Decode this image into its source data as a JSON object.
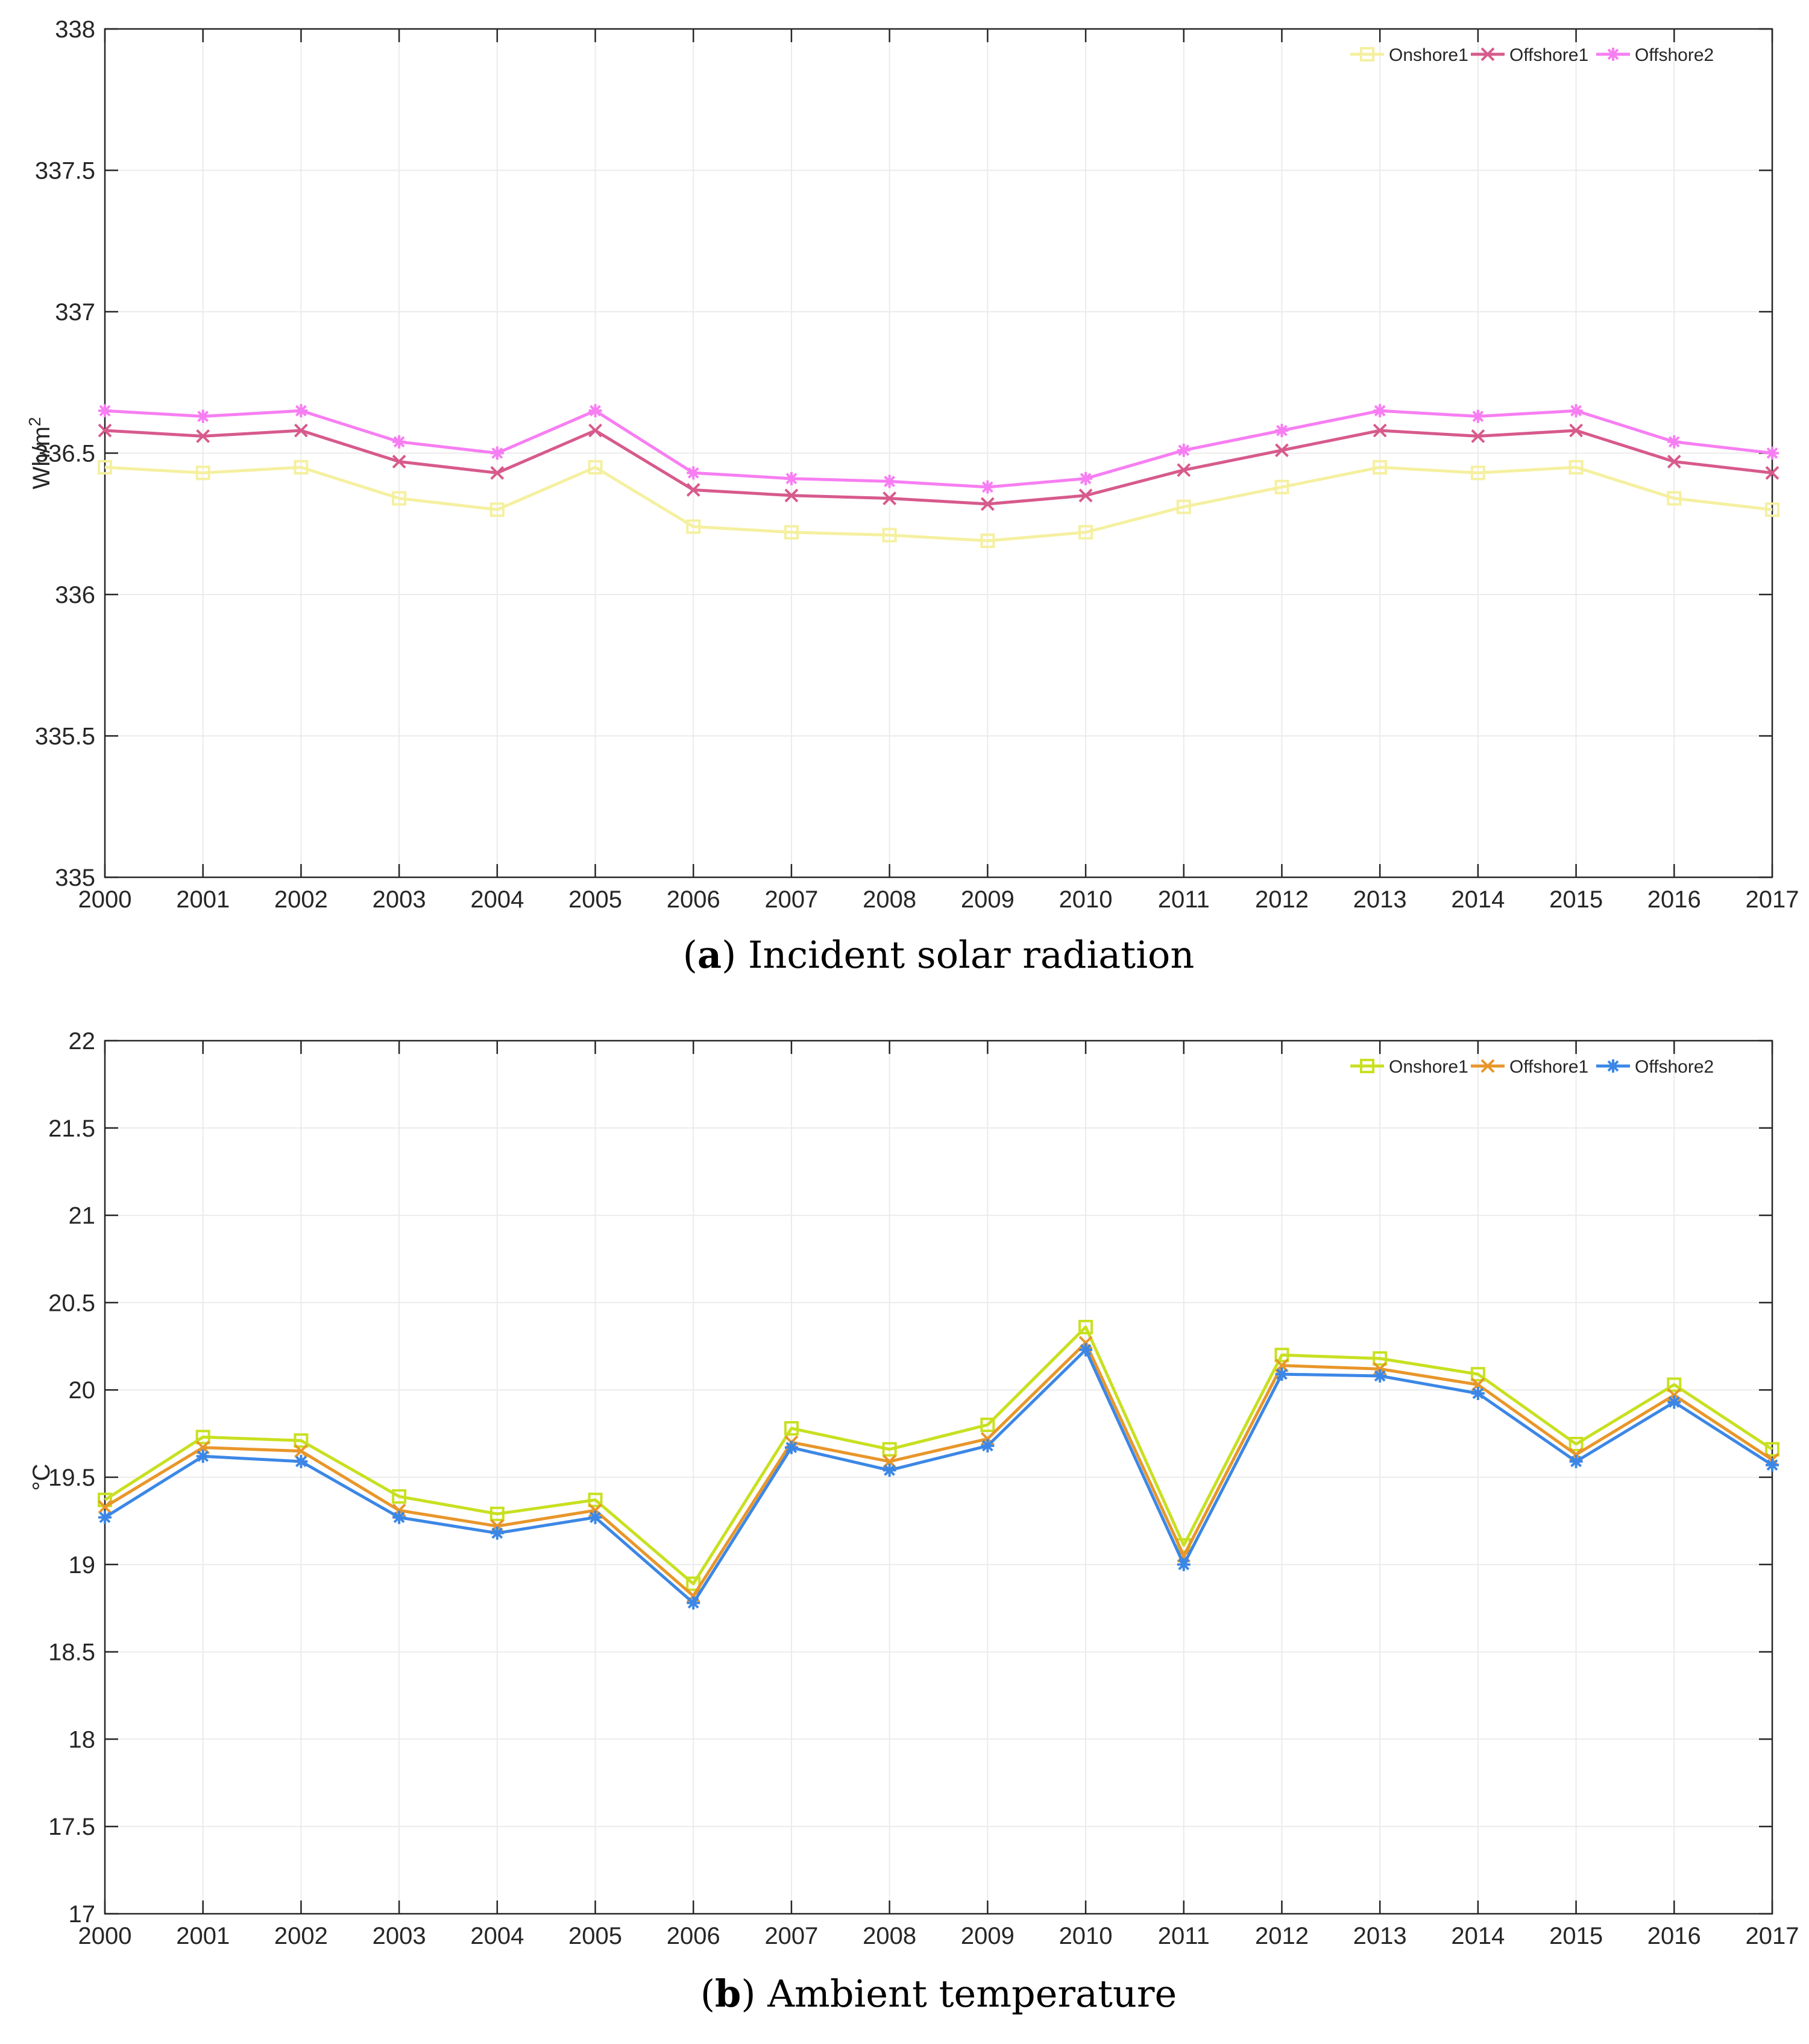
{
  "chart_data": [
    {
      "type": "line",
      "panel": "a",
      "caption_letter": "a",
      "caption_text": "Incident solar radiation",
      "ylabel": "Wh/m",
      "ylabel_sup": "2",
      "xlabel": "",
      "ylim": [
        335,
        338
      ],
      "yticks": [
        "335",
        "335.5",
        "336",
        "336.5",
        "337",
        "337.5",
        "338"
      ],
      "ytick_values": [
        335,
        335.5,
        336,
        336.5,
        337,
        337.5,
        338
      ],
      "x": [
        "2000",
        "2001",
        "2002",
        "2003",
        "2004",
        "2005",
        "2006",
        "2007",
        "2008",
        "2009",
        "2010",
        "2011",
        "2012",
        "2013",
        "2014",
        "2015",
        "2016",
        "2017"
      ],
      "grid": true,
      "legend": "top-right",
      "series": [
        {
          "name": "Onshore1",
          "color": "#f5f0a0",
          "marker": "square",
          "values": [
            336.45,
            336.43,
            336.45,
            336.34,
            336.3,
            336.45,
            336.24,
            336.22,
            336.21,
            336.19,
            336.22,
            336.31,
            336.38,
            336.45,
            336.43,
            336.45,
            336.34,
            336.3
          ]
        },
        {
          "name": "Offshore1",
          "color": "#d75a8c",
          "marker": "x",
          "values": [
            336.58,
            336.56,
            336.58,
            336.47,
            336.43,
            336.58,
            336.37,
            336.35,
            336.34,
            336.32,
            336.35,
            336.44,
            336.51,
            336.58,
            336.56,
            336.58,
            336.47,
            336.43
          ]
        },
        {
          "name": "Offshore2",
          "color": "#f77ef2",
          "marker": "star",
          "values": [
            336.65,
            336.63,
            336.65,
            336.54,
            336.5,
            336.65,
            336.43,
            336.41,
            336.4,
            336.38,
            336.41,
            336.51,
            336.58,
            336.65,
            336.63,
            336.65,
            336.54,
            336.5
          ]
        }
      ]
    },
    {
      "type": "line",
      "panel": "b",
      "caption_letter": "b",
      "caption_text": "Ambient temperature",
      "ylabel": "°C",
      "ylabel_sup": "",
      "xlabel": "",
      "ylim": [
        17,
        22
      ],
      "yticks": [
        "17",
        "17.5",
        "18",
        "18.5",
        "19",
        "19.5",
        "20",
        "20.5",
        "21",
        "21.5",
        "22"
      ],
      "ytick_values": [
        17,
        17.5,
        18,
        18.5,
        19,
        19.5,
        20,
        20.5,
        21,
        21.5,
        22
      ],
      "x": [
        "2000",
        "2001",
        "2002",
        "2003",
        "2004",
        "2005",
        "2006",
        "2007",
        "2008",
        "2009",
        "2010",
        "2011",
        "2012",
        "2013",
        "2014",
        "2015",
        "2016",
        "2017"
      ],
      "grid": true,
      "legend": "top-right",
      "series": [
        {
          "name": "Onshore1",
          "color": "#c8e020",
          "marker": "square",
          "values": [
            19.37,
            19.73,
            19.71,
            19.39,
            19.29,
            19.37,
            18.89,
            19.78,
            19.66,
            19.8,
            20.36,
            19.11,
            20.2,
            20.18,
            20.09,
            19.69,
            20.03,
            19.66
          ]
        },
        {
          "name": "Offshore1",
          "color": "#e8962a",
          "marker": "x",
          "values": [
            19.33,
            19.67,
            19.65,
            19.31,
            19.22,
            19.31,
            18.82,
            19.7,
            19.59,
            19.72,
            20.27,
            19.05,
            20.14,
            20.12,
            20.03,
            19.63,
            19.97,
            19.6
          ]
        },
        {
          "name": "Offshore2",
          "color": "#3c87e6",
          "marker": "star",
          "values": [
            19.27,
            19.62,
            19.59,
            19.27,
            19.18,
            19.27,
            18.78,
            19.67,
            19.54,
            19.68,
            20.23,
            19.0,
            20.09,
            20.08,
            19.98,
            19.59,
            19.93,
            19.57
          ]
        }
      ]
    }
  ]
}
